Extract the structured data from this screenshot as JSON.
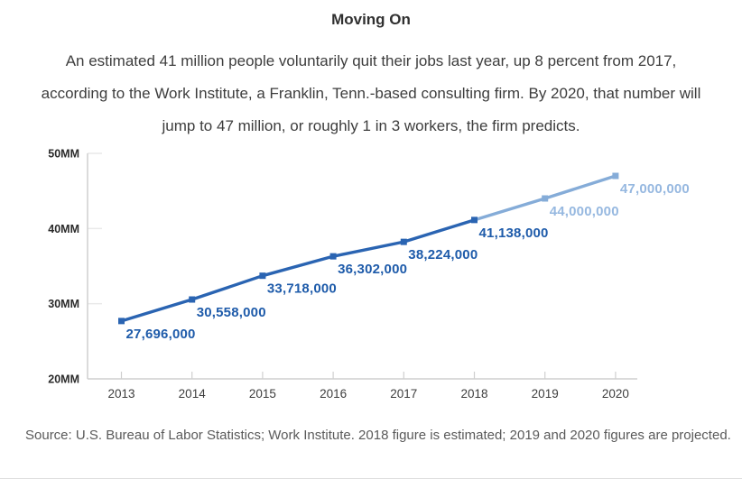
{
  "header": {
    "title": "Moving On",
    "subtitle": "An estimated 41 million people voluntarily quit their jobs last year, up 8 percent from 2017, according to the Work Institute, a Franklin, Tenn.-based consulting firm. By 2020, that number will jump to 47 million, or roughly 1 in 3 workers, the firm predicts."
  },
  "chart_data": {
    "type": "line",
    "title": "Moving On",
    "x": [
      "2013",
      "2014",
      "2015",
      "2016",
      "2017",
      "2018",
      "2019",
      "2020"
    ],
    "series": [
      {
        "name": "voluntary-quits",
        "values": [
          27696000,
          30558000,
          33718000,
          36302000,
          38224000,
          41138000,
          44000000,
          47000000
        ],
        "point_labels": [
          "27,696,000",
          "30,558,000",
          "33,718,000",
          "36,302,000",
          "38,224,000",
          "41,138,000",
          "44,000,000",
          "47,000,000"
        ]
      }
    ],
    "projected_from_index": 5,
    "ylim": [
      20000000,
      50000000
    ],
    "yticks": [
      {
        "value": 50000000,
        "label": "50MM"
      },
      {
        "value": 40000000,
        "label": "40MM"
      },
      {
        "value": 30000000,
        "label": "30MM"
      },
      {
        "value": 20000000,
        "label": "20MM"
      }
    ],
    "grid": "short-stubs-at-yticks",
    "legend": "none",
    "colors": {
      "actual_line": "#2a64b2",
      "projected_line": "#85acd8",
      "actual_label": "#1e5baa",
      "projected_label": "#96b8e0",
      "axis": "#cfcfcf",
      "grid_stub": "#e9e9e9",
      "xtick_text": "#3d3d3d",
      "ytick_text": "#2b2b2b"
    }
  },
  "footer": {
    "source": "Source: U.S. Bureau of Labor Statistics; Work Institute. 2018 figure is estimated; 2019 and 2020 figures are projected."
  }
}
